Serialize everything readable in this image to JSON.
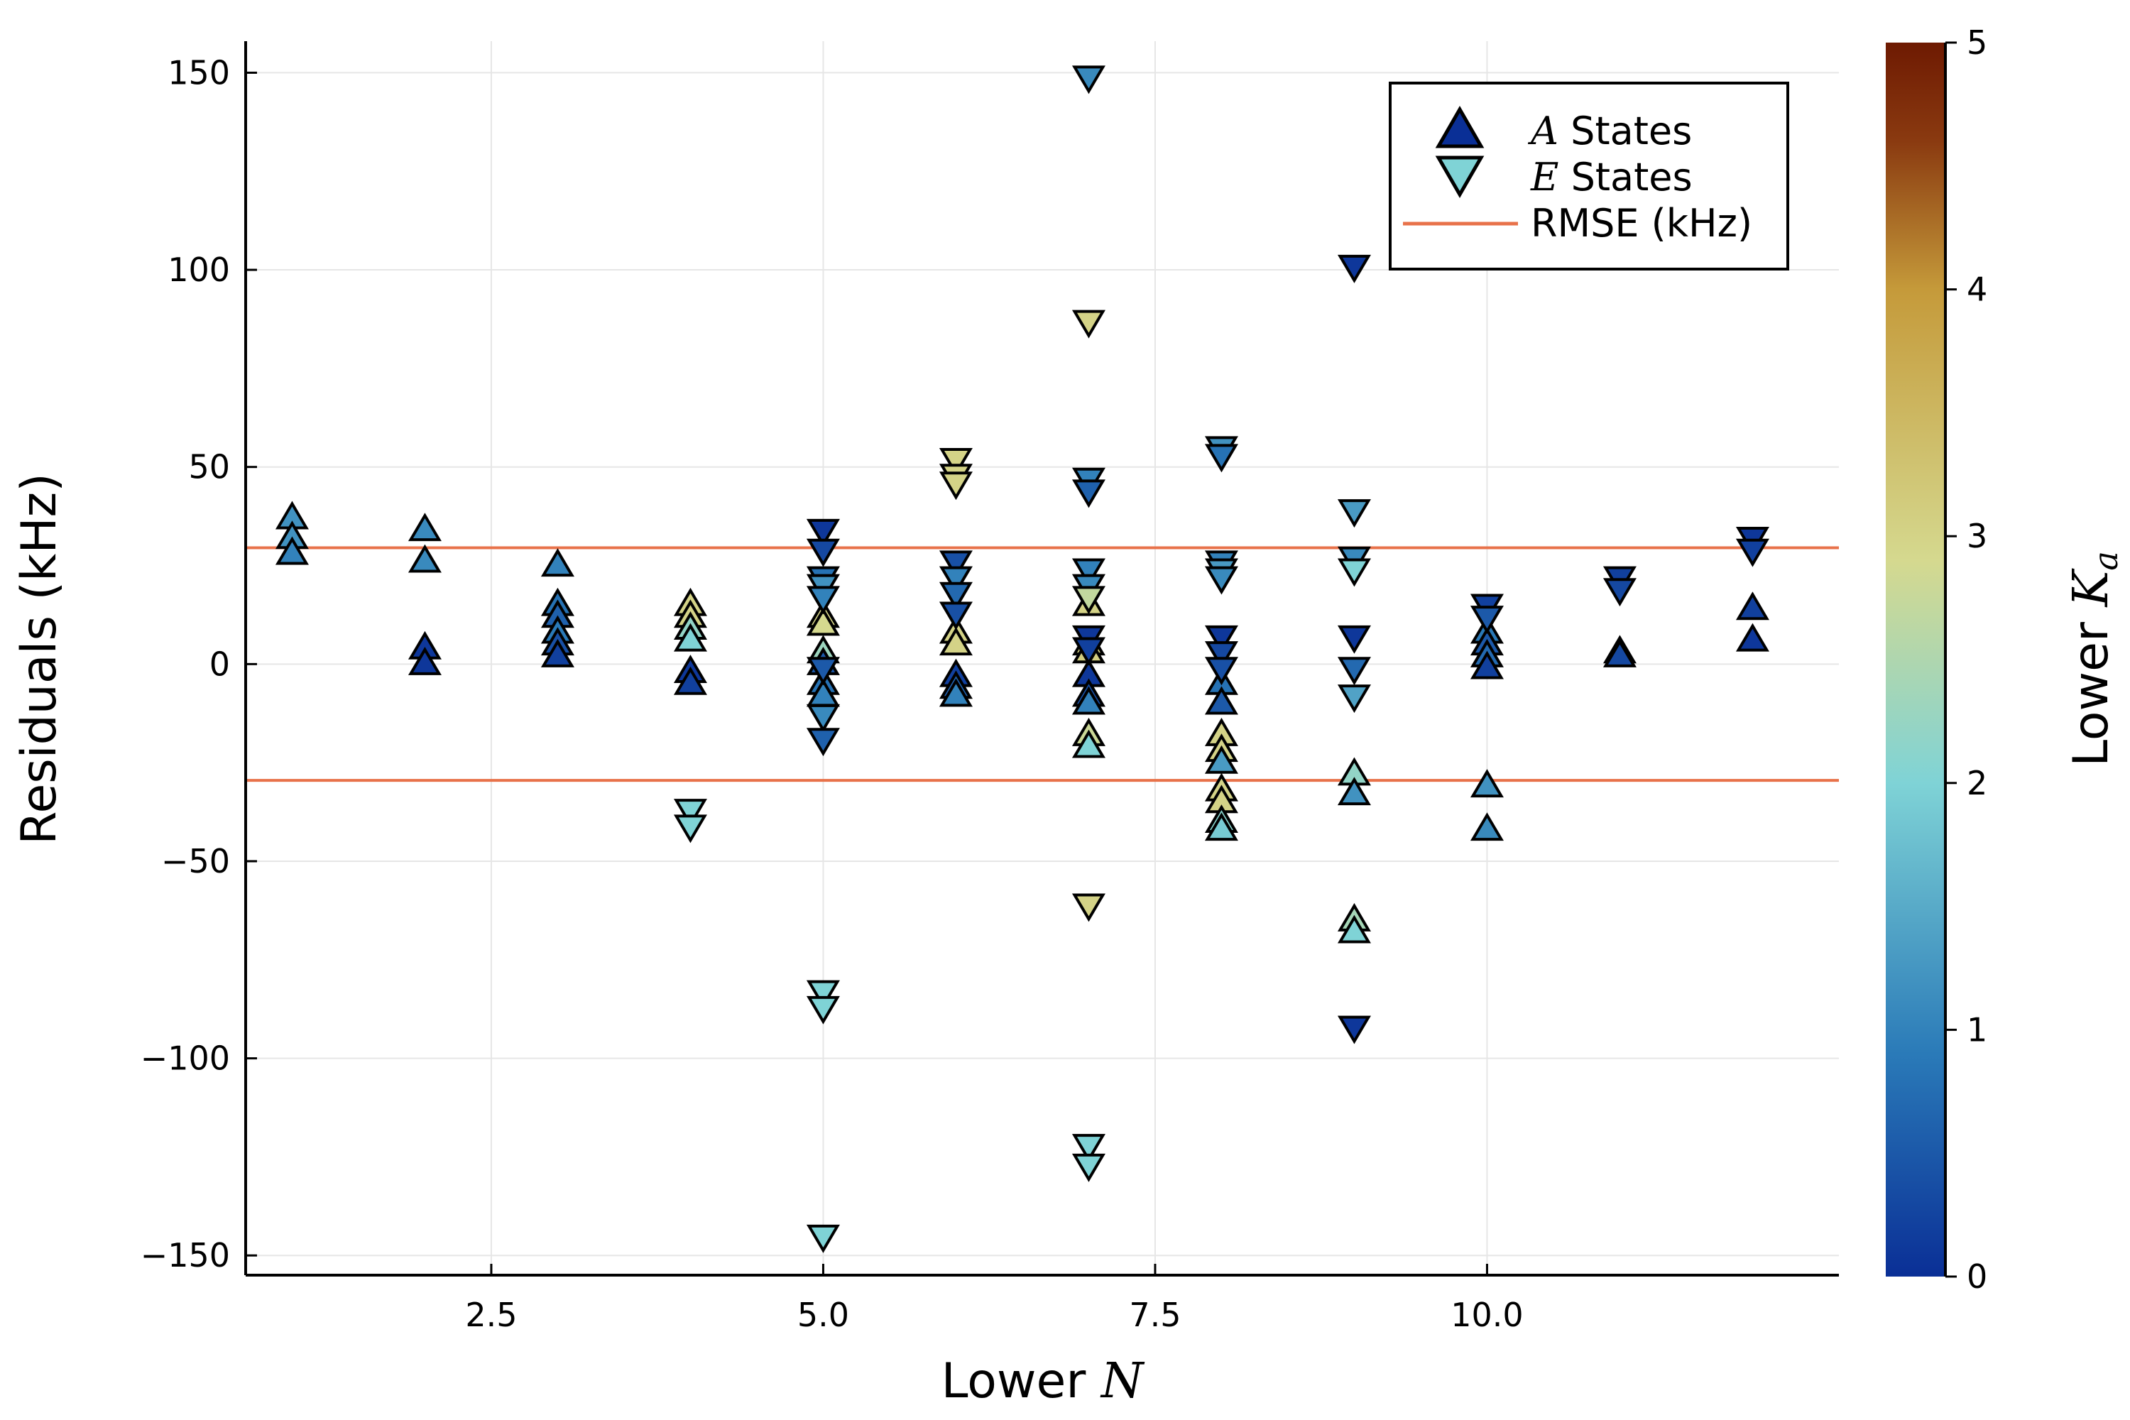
{
  "chart_data": {
    "type": "scatter",
    "xlabel": "Lower ",
    "xlabel_var": "N",
    "ylabel": "Residuals (kHz)",
    "colorbar_label": "Lower ",
    "colorbar_var": "K",
    "colorbar_sub": "a",
    "xlim": [
      0.65,
      12.65
    ],
    "ylim": [
      -155,
      158
    ],
    "xticks": [
      2.5,
      5.0,
      7.5,
      10.0
    ],
    "xtick_labels": [
      "2.5",
      "5.0",
      "7.5",
      "10.0"
    ],
    "yticks": [
      -150,
      -100,
      -50,
      0,
      50,
      100,
      150
    ],
    "ytick_labels": [
      "−150",
      "−100",
      "−50",
      "0",
      "50",
      "100",
      "150"
    ],
    "colorbar_range": [
      0,
      5
    ],
    "colorbar_ticks": [
      0,
      1,
      2,
      3,
      4,
      5
    ],
    "colorbar_tick_labels": [
      "0",
      "1",
      "2",
      "3",
      "4",
      "5"
    ],
    "colormap": [
      "#0a2f96",
      "#2a7ab8",
      "#7fd3d6",
      "#d5d98f",
      "#c59a3a",
      "#8a3a10",
      "#6e1a02"
    ],
    "grid": true,
    "legend_position": "top-right",
    "legend": [
      {
        "var": "A",
        "label": " States",
        "marker": "triangle-up",
        "color": "#0a2f96"
      },
      {
        "var": "E",
        "label": " States",
        "marker": "triangle-down",
        "color": "#7fd3d6"
      },
      {
        "label": "RMSE (kHz)",
        "marker": "line",
        "color": "#e8724a"
      }
    ],
    "rmse_kHz": 29.5,
    "series": [
      {
        "name": "A States",
        "marker": "triangle-up",
        "points": [
          [
            1,
            37,
            1.2
          ],
          [
            1,
            32,
            1.2
          ],
          [
            1,
            28,
            1.0
          ],
          [
            2,
            34,
            1.1
          ],
          [
            2,
            26,
            1.1
          ],
          [
            2,
            4,
            0.1
          ],
          [
            2,
            0,
            0.1
          ],
          [
            3,
            25,
            1.0
          ],
          [
            3,
            15,
            0.8
          ],
          [
            3,
            12,
            0.6
          ],
          [
            3,
            8,
            0.9
          ],
          [
            3,
            5,
            0.4
          ],
          [
            3,
            2,
            0.2
          ],
          [
            4,
            15,
            3.0
          ],
          [
            4,
            12,
            3.0
          ],
          [
            4,
            9,
            2.2
          ],
          [
            4,
            6,
            2.0
          ],
          [
            4,
            -2,
            0.1
          ],
          [
            4,
            -5,
            0.2
          ],
          [
            5,
            12,
            3.0
          ],
          [
            5,
            10,
            2.9
          ],
          [
            5,
            3,
            2.3
          ],
          [
            5,
            0,
            0.5
          ],
          [
            5,
            -5,
            0.8
          ],
          [
            5,
            -8,
            1.0
          ],
          [
            6,
            8,
            3.0
          ],
          [
            6,
            5,
            3.0
          ],
          [
            6,
            -3,
            0.2
          ],
          [
            6,
            -6,
            0.6
          ],
          [
            6,
            -8,
            1.0
          ],
          [
            7,
            15,
            3.0
          ],
          [
            7,
            5,
            3.0
          ],
          [
            7,
            3,
            3.1
          ],
          [
            7,
            -3,
            0.1
          ],
          [
            7,
            -8,
            0.4
          ],
          [
            7,
            -10,
            1.0
          ],
          [
            7,
            -18,
            2.8
          ],
          [
            7,
            -21,
            2.0
          ],
          [
            8,
            -5,
            0.8
          ],
          [
            8,
            -10,
            0.5
          ],
          [
            8,
            -18,
            3.0
          ],
          [
            8,
            -22,
            3.0
          ],
          [
            8,
            -25,
            1.3
          ],
          [
            8,
            -32,
            3.0
          ],
          [
            8,
            -35,
            3.0
          ],
          [
            8,
            -40,
            2.1
          ],
          [
            8,
            -42,
            1.9
          ],
          [
            9,
            -28,
            2.2
          ],
          [
            9,
            -33,
            1.2
          ],
          [
            9,
            -65,
            2.4
          ],
          [
            9,
            -68,
            2.0
          ],
          [
            10,
            8,
            0.9
          ],
          [
            10,
            5,
            0.5
          ],
          [
            10,
            2,
            0.7
          ],
          [
            10,
            -1,
            0.2
          ],
          [
            10,
            -31,
            1.2
          ],
          [
            10,
            -42,
            1.1
          ],
          [
            11,
            3,
            0.1
          ],
          [
            11,
            2,
            0.3
          ],
          [
            12,
            14,
            0.2
          ],
          [
            12,
            6,
            0.1
          ]
        ]
      },
      {
        "name": "E States",
        "marker": "triangle-down",
        "points": [
          [
            4,
            -37,
            2.0
          ],
          [
            4,
            -41,
            2.0
          ],
          [
            5,
            34,
            0.1
          ],
          [
            5,
            29,
            0.3
          ],
          [
            5,
            22,
            0.8
          ],
          [
            5,
            20,
            1.2
          ],
          [
            5,
            17,
            1.0
          ],
          [
            5,
            -1,
            0.5
          ],
          [
            5,
            -13,
            1.1
          ],
          [
            5,
            -19,
            0.6
          ],
          [
            5,
            -83,
            2.0
          ],
          [
            5,
            -87,
            2.0
          ],
          [
            5,
            -145,
            2.0
          ],
          [
            6,
            52,
            3.0
          ],
          [
            6,
            48,
            3.0
          ],
          [
            6,
            46,
            3.0
          ],
          [
            6,
            26,
            0.4
          ],
          [
            6,
            22,
            1.0
          ],
          [
            6,
            18,
            0.7
          ],
          [
            6,
            13,
            0.4
          ],
          [
            7,
            149,
            1.1
          ],
          [
            7,
            87,
            3.0
          ],
          [
            7,
            47,
            1.0
          ],
          [
            7,
            44,
            0.6
          ],
          [
            7,
            24,
            1.0
          ],
          [
            7,
            20,
            1.1
          ],
          [
            7,
            17,
            2.7
          ],
          [
            7,
            7,
            0.1
          ],
          [
            7,
            4,
            0.2
          ],
          [
            7,
            -61,
            3.0
          ],
          [
            7,
            -122,
            2.0
          ],
          [
            7,
            -127,
            2.0
          ],
          [
            8,
            55,
            1.2
          ],
          [
            8,
            53,
            0.8
          ],
          [
            8,
            26,
            1.0
          ],
          [
            8,
            24,
            1.3
          ],
          [
            8,
            22,
            1.1
          ],
          [
            8,
            7,
            0.1
          ],
          [
            8,
            3,
            0.3
          ],
          [
            8,
            -1,
            0.4
          ],
          [
            9,
            101,
            0.1
          ],
          [
            9,
            39,
            1.3
          ],
          [
            9,
            27,
            1.1
          ],
          [
            9,
            24,
            2.0
          ],
          [
            9,
            7,
            0.1
          ],
          [
            9,
            -1,
            0.7
          ],
          [
            9,
            -8,
            1.4
          ],
          [
            9,
            -92,
            0.1
          ],
          [
            10,
            15,
            0.2
          ],
          [
            10,
            12,
            0.5
          ],
          [
            11,
            22,
            0.2
          ],
          [
            11,
            19,
            0.3
          ],
          [
            12,
            32,
            0.1
          ],
          [
            12,
            29,
            0.2
          ]
        ]
      }
    ]
  }
}
